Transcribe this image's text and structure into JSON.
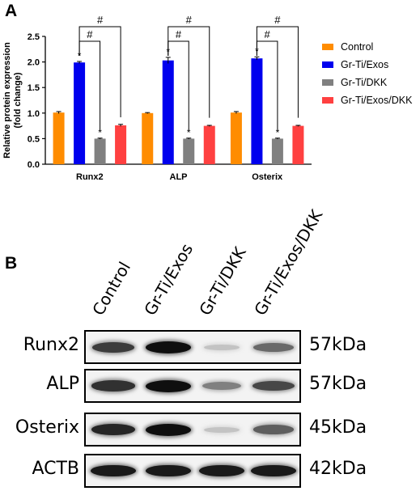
{
  "panels": {
    "a_label": "A",
    "b_label": "B"
  },
  "chart_data": {
    "type": "bar",
    "title": "",
    "xlabel": "",
    "ylabel": "Relative protein expression\n(fold change)",
    "ylim": [
      0,
      2.5
    ],
    "yticks": [
      "0.0",
      "0.5",
      "1.0",
      "1.5",
      "2.0",
      "2.5"
    ],
    "categories": [
      "Runx2",
      "ALP",
      "Osterix"
    ],
    "series": [
      {
        "name": "Control",
        "color": "#ff8c00",
        "values": [
          1.01,
          1.0,
          1.01
        ],
        "errors": [
          0.02,
          0.01,
          0.02
        ],
        "marks": [
          "",
          "",
          ""
        ]
      },
      {
        "name": "Gr-Ti/Exos",
        "color": "#0000ee",
        "values": [
          1.99,
          2.03,
          2.07
        ],
        "errors": [
          0.02,
          0.06,
          0.03
        ],
        "marks": [
          "*",
          "*",
          "*"
        ]
      },
      {
        "name": "Gr-Ti/DKK",
        "color": "#808080",
        "values": [
          0.5,
          0.5,
          0.5
        ],
        "errors": [
          0.01,
          0.01,
          0.01
        ],
        "marks": [
          "*",
          "*",
          "*"
        ]
      },
      {
        "name": "Gr-Ti/Exos/DKK",
        "color": "#ff4040",
        "values": [
          0.76,
          0.75,
          0.75
        ],
        "errors": [
          0.02,
          0.01,
          0.01
        ],
        "marks": [
          "",
          "",
          ""
        ]
      }
    ],
    "significance": [
      {
        "from": "Gr-Ti/Exos",
        "to": "Gr-Ti/DKK",
        "mark": "#"
      },
      {
        "from": "Gr-Ti/Exos",
        "to": "Gr-Ti/Exos/DKK",
        "mark": "#"
      }
    ],
    "legend_position": "right",
    "grid": false
  },
  "blot": {
    "columns": [
      "Control",
      "Gr-Ti/Exos",
      "Gr-Ti/DKK",
      "Gr-Ti/Exos/DKK"
    ],
    "rows": [
      {
        "protein": "Runx2",
        "size": "57kDa",
        "intensity": [
          0.8,
          1.0,
          0.2,
          0.6
        ]
      },
      {
        "protein": "ALP",
        "size": "57kDa",
        "intensity": [
          0.85,
          1.0,
          0.5,
          0.75
        ]
      },
      {
        "protein": "Osterix",
        "size": "45kDa",
        "intensity": [
          0.9,
          1.0,
          0.2,
          0.65
        ]
      },
      {
        "protein": "ACTB",
        "size": "42kDa",
        "intensity": [
          0.95,
          0.95,
          0.95,
          0.95
        ]
      }
    ]
  }
}
